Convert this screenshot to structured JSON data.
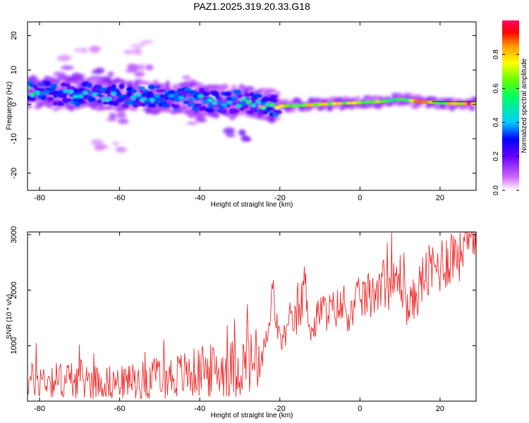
{
  "chart_data": [
    {
      "type": "heatmap",
      "title": "PAZ1.2025.319.20.33.G18",
      "xlabel": "Height of straight line (km)",
      "ylabel": "Frequency (Hz)",
      "xlim": [
        -83,
        29
      ],
      "ylim": [
        -25,
        24
      ],
      "xticks": [
        "-80",
        "-60",
        "-40",
        "-20",
        "0",
        "20"
      ],
      "yticks": [
        "20",
        "10",
        "0",
        "-10",
        "-20"
      ],
      "colorbar": {
        "label": "Normalized spectral amplitude",
        "range": [
          0,
          1
        ],
        "ticks": [
          "0.0",
          "0.2",
          "0.4",
          "0.6",
          "0.8"
        ],
        "colors": [
          "#ffffff",
          "#cc66ff",
          "#6600ff",
          "#0000ff",
          "#00ccff",
          "#00ff66",
          "#66ff00",
          "#ffff00",
          "#ff9900",
          "#ff0000",
          "#ff0066"
        ]
      },
      "ridge": [
        {
          "x": -80,
          "y": 3.5,
          "amp": 0.45
        },
        {
          "x": -75,
          "y": 3.0,
          "amp": 0.35
        },
        {
          "x": -70,
          "y": 3.2,
          "amp": 0.4
        },
        {
          "x": -65,
          "y": 2.8,
          "amp": 0.38
        },
        {
          "x": -60,
          "y": 2.5,
          "amp": 0.35
        },
        {
          "x": -55,
          "y": 2.5,
          "amp": 0.4
        },
        {
          "x": -50,
          "y": 2.0,
          "amp": 0.35
        },
        {
          "x": -45,
          "y": 1.8,
          "amp": 0.38
        },
        {
          "x": -40,
          "y": 1.2,
          "amp": 0.4
        },
        {
          "x": -35,
          "y": 1.0,
          "amp": 0.42
        },
        {
          "x": -30,
          "y": 0.8,
          "amp": 0.45
        },
        {
          "x": -25,
          "y": 0.3,
          "amp": 0.55
        },
        {
          "x": -20,
          "y": -0.5,
          "amp": 0.8
        },
        {
          "x": -15,
          "y": -0.3,
          "amp": 0.6
        },
        {
          "x": -10,
          "y": 0.0,
          "amp": 0.75
        },
        {
          "x": -5,
          "y": 0.3,
          "amp": 0.7
        },
        {
          "x": 0,
          "y": 0.5,
          "amp": 0.75
        },
        {
          "x": 5,
          "y": 0.8,
          "amp": 0.7
        },
        {
          "x": 10,
          "y": 1.5,
          "amp": 0.65
        },
        {
          "x": 15,
          "y": 0.8,
          "amp": 0.8
        },
        {
          "x": 20,
          "y": 0.5,
          "amp": 0.7
        },
        {
          "x": 25,
          "y": 0.2,
          "amp": 0.85
        },
        {
          "x": 29,
          "y": 0.2,
          "amp": 0.9
        }
      ],
      "scatter_blobs": [
        {
          "x": -72,
          "y": 9,
          "amp": 0.15
        },
        {
          "x": -65,
          "y": 8,
          "amp": 0.2
        },
        {
          "x": -60,
          "y": -3,
          "amp": 0.15
        },
        {
          "x": -55,
          "y": 10,
          "amp": 0.1
        },
        {
          "x": -50,
          "y": -2,
          "amp": 0.18
        },
        {
          "x": -45,
          "y": 7,
          "amp": 0.12
        },
        {
          "x": -40,
          "y": -4,
          "amp": 0.15
        },
        {
          "x": -35,
          "y": -3,
          "amp": 0.15
        },
        {
          "x": -31,
          "y": -9,
          "amp": 0.2
        },
        {
          "x": -62,
          "y": -13,
          "amp": 0.08
        },
        {
          "x": -70,
          "y": 15,
          "amp": 0.06
        },
        {
          "x": -57,
          "y": 17,
          "amp": 0.06
        }
      ]
    },
    {
      "type": "line",
      "xlabel": "Height of straight line (km)",
      "ylabel": "SNR (10 * v/v)",
      "xlim": [
        -83,
        29
      ],
      "ylim": [
        0,
        3050
      ],
      "xticks": [
        "-80",
        "-60",
        "-40",
        "-20",
        "0",
        "20"
      ],
      "yticks": [
        "3000",
        "2000",
        "1000"
      ],
      "color": "#ee3333",
      "series": [
        {
          "name": "SNR",
          "x": [
            -83,
            -80,
            -75,
            -70,
            -65,
            -60,
            -55,
            -50,
            -45,
            -40,
            -35,
            -30,
            -25,
            -22.5,
            -22,
            -20,
            -17,
            -15,
            -14,
            -12,
            -10,
            -8,
            -5,
            -2,
            0,
            3,
            5,
            8,
            10,
            12,
            14,
            16,
            18,
            20,
            22,
            25,
            27,
            29
          ],
          "values": [
            350,
            400,
            380,
            400,
            350,
            330,
            380,
            420,
            470,
            520,
            560,
            620,
            720,
            1300,
            2050,
            1050,
            1400,
            1500,
            2200,
            1200,
            1650,
            1600,
            1700,
            1550,
            1900,
            1850,
            2200,
            2050,
            2250,
            1650,
            1900,
            2250,
            2350,
            2450,
            2600,
            2750,
            2850,
            2850
          ]
        }
      ]
    }
  ]
}
